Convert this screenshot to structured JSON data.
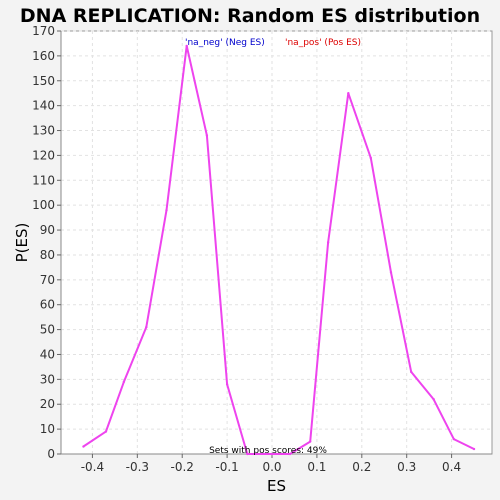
{
  "chart_data": {
    "type": "line",
    "title": "DNA REPLICATION: Random ES distribution",
    "xlabel": "ES",
    "ylabel": "P(ES)",
    "xlim": [
      -0.47,
      0.49
    ],
    "ylim": [
      0,
      170
    ],
    "x_ticks": [
      -0.4,
      -0.3,
      -0.2,
      -0.1,
      0.0,
      0.1,
      0.2,
      0.3,
      0.4
    ],
    "x_tick_labels": [
      "-0.4",
      "-0.3",
      "-0.2",
      "-0.1",
      "0.0",
      "0.1",
      "0.2",
      "0.3",
      "0.4"
    ],
    "y_ticks": [
      0,
      10,
      20,
      30,
      40,
      50,
      60,
      70,
      80,
      90,
      100,
      110,
      120,
      130,
      140,
      150,
      160,
      170
    ],
    "grid": true,
    "legend_position": "top",
    "legend": [
      {
        "label": "'na_neg' (Neg ES)",
        "color": "#0000cc"
      },
      {
        "label": "'na_pos' (Pos ES)",
        "color": "#dd0000"
      }
    ],
    "annotation": "Sets with pos scores: 49%",
    "line_color": "#ee44ee",
    "series": [
      {
        "x": [
          -0.42,
          -0.37,
          -0.33,
          -0.28,
          -0.235,
          -0.19,
          -0.145,
          -0.1,
          -0.055,
          0.0,
          0.04,
          0.085,
          0.125,
          0.17,
          0.22,
          0.265,
          0.31,
          0.36,
          0.405,
          0.45
        ],
        "values": [
          3,
          9,
          29,
          51,
          98,
          164,
          128,
          28,
          0,
          0,
          0,
          5,
          85,
          145,
          119,
          73,
          33,
          22,
          6,
          2
        ]
      }
    ]
  }
}
